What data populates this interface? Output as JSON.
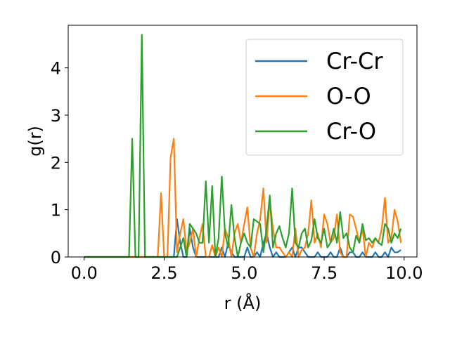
{
  "chart_data": {
    "type": "line",
    "title": "",
    "xlabel": "r (Å)",
    "ylabel": "g(r)",
    "xlim": [
      -0.5,
      10.4
    ],
    "ylim": [
      0,
      4.9
    ],
    "xticks": [
      "0.0",
      "2.5",
      "5.0",
      "7.5",
      "10.0"
    ],
    "xtick_values": [
      0,
      2.5,
      5,
      7.5,
      10
    ],
    "yticks": [
      "0",
      "1",
      "2",
      "3",
      "4"
    ],
    "ytick_values": [
      0,
      1,
      2,
      3,
      4
    ],
    "grid": false,
    "legend_position": "top-right",
    "series": [
      {
        "name": "Cr-Cr",
        "color": "#1f77b4",
        "x": [
          0.0,
          0.1,
          0.2,
          0.3,
          0.4,
          0.5,
          0.6,
          0.7,
          0.8,
          0.9,
          1.0,
          1.1,
          1.2,
          1.3,
          1.4,
          1.5,
          1.6,
          1.7,
          1.8,
          1.9,
          2.0,
          2.1,
          2.2,
          2.3,
          2.4,
          2.5,
          2.6,
          2.7,
          2.8,
          2.9,
          3.0,
          3.1,
          3.2,
          3.3,
          3.4,
          3.5,
          3.6,
          3.7,
          3.8,
          3.9,
          4.0,
          4.1,
          4.2,
          4.3,
          4.4,
          4.5,
          4.6,
          4.7,
          4.8,
          4.9,
          5.0,
          5.1,
          5.2,
          5.3,
          5.4,
          5.5,
          5.6,
          5.7,
          5.8,
          5.9,
          6.0,
          6.1,
          6.2,
          6.3,
          6.4,
          6.5,
          6.6,
          6.7,
          6.8,
          6.9,
          7.0,
          7.1,
          7.2,
          7.3,
          7.4,
          7.5,
          7.6,
          7.7,
          7.8,
          7.9,
          8.0,
          8.1,
          8.2,
          8.3,
          8.4,
          8.5,
          8.6,
          8.7,
          8.8,
          8.9,
          9.0,
          9.1,
          9.2,
          9.3,
          9.4,
          9.5,
          9.6,
          9.7,
          9.8,
          9.9
        ],
        "values": [
          0,
          0,
          0,
          0,
          0,
          0,
          0,
          0,
          0,
          0,
          0,
          0,
          0,
          0,
          0,
          0,
          0,
          0,
          0,
          0,
          0,
          0,
          0,
          0,
          0,
          0,
          0,
          0,
          0,
          0.8,
          0.3,
          0.0,
          0.0,
          0.6,
          0.2,
          0.0,
          0.0,
          0.0,
          0.0,
          0.0,
          0.0,
          0.0,
          0.0,
          0.2,
          0.0,
          0.3,
          0.1,
          0.0,
          0.0,
          0.0,
          0.0,
          0.2,
          0.0,
          0.0,
          0.1,
          0.0,
          0.3,
          0.5,
          0.2,
          0.0,
          0.1,
          0.0,
          0.0,
          0.0,
          0.1,
          0.2,
          0.0,
          0.2,
          0.2,
          0.1,
          0.0,
          0.0,
          0.0,
          0.1,
          0.0,
          0.0,
          0.0,
          0.1,
          0.0,
          0.0,
          0.2,
          0.0,
          0.0,
          0.1,
          0.1,
          0.0,
          0.0,
          0.1,
          0.0,
          0.0,
          0.0,
          0.1,
          0.0,
          0.0,
          0.1,
          0.0,
          0.2,
          0.1,
          0.1,
          0.15
        ]
      },
      {
        "name": "O-O",
        "color": "#ff7f0e",
        "x": [
          0.0,
          0.1,
          0.2,
          0.3,
          0.4,
          0.5,
          0.6,
          0.7,
          0.8,
          0.9,
          1.0,
          1.1,
          1.2,
          1.3,
          1.4,
          1.5,
          1.6,
          1.7,
          1.8,
          1.9,
          2.0,
          2.1,
          2.2,
          2.3,
          2.4,
          2.5,
          2.6,
          2.7,
          2.8,
          2.9,
          3.0,
          3.1,
          3.2,
          3.3,
          3.4,
          3.5,
          3.6,
          3.7,
          3.8,
          3.9,
          4.0,
          4.1,
          4.2,
          4.3,
          4.4,
          4.5,
          4.6,
          4.7,
          4.8,
          4.9,
          5.0,
          5.1,
          5.2,
          5.3,
          5.4,
          5.5,
          5.6,
          5.7,
          5.8,
          5.9,
          6.0,
          6.1,
          6.2,
          6.3,
          6.4,
          6.5,
          6.6,
          6.7,
          6.8,
          6.9,
          7.0,
          7.1,
          7.2,
          7.3,
          7.4,
          7.5,
          7.6,
          7.7,
          7.8,
          7.9,
          8.0,
          8.1,
          8.2,
          8.3,
          8.4,
          8.5,
          8.6,
          8.7,
          8.8,
          8.9,
          9.0,
          9.1,
          9.2,
          9.3,
          9.4,
          9.5,
          9.6,
          9.7,
          9.8,
          9.9
        ],
        "values": [
          0,
          0,
          0,
          0,
          0,
          0,
          0,
          0,
          0,
          0,
          0,
          0,
          0,
          0,
          0,
          0,
          0,
          0,
          0,
          0,
          0,
          0,
          0,
          0,
          1.35,
          0,
          0,
          2.1,
          2.5,
          0.1,
          0.5,
          0.8,
          0.1,
          0.3,
          0.6,
          0.0,
          0.4,
          0.7,
          0.0,
          0.0,
          0.25,
          0.0,
          0.2,
          0.0,
          0.6,
          0.4,
          0.0,
          0.5,
          0.7,
          0.3,
          0.7,
          1.05,
          0.2,
          0.0,
          0.5,
          0.8,
          1.45,
          0.3,
          1.2,
          0.6,
          0.2,
          0.2,
          0.1,
          0.0,
          0.1,
          0.0,
          0.6,
          0.0,
          0.15,
          0.2,
          0.5,
          1.2,
          0.3,
          0.5,
          0.2,
          0.9,
          0.7,
          0.3,
          0.4,
          0.9,
          0.1,
          0.0,
          0.0,
          0.9,
          0.85,
          0.6,
          0.3,
          0.6,
          0.0,
          0.3,
          0.2,
          0.4,
          0.3,
          0.6,
          1.25,
          0.3,
          0.4,
          1.0,
          0.75,
          0.3
        ]
      },
      {
        "name": "Cr-O",
        "color": "#2ca02c",
        "x": [
          0.0,
          0.1,
          0.2,
          0.3,
          0.4,
          0.5,
          0.6,
          0.7,
          0.8,
          0.9,
          1.0,
          1.1,
          1.2,
          1.3,
          1.4,
          1.5,
          1.6,
          1.7,
          1.8,
          1.9,
          2.0,
          2.1,
          2.2,
          2.3,
          2.4,
          2.5,
          2.6,
          2.7,
          2.8,
          2.9,
          3.0,
          3.1,
          3.2,
          3.3,
          3.4,
          3.5,
          3.6,
          3.7,
          3.8,
          3.9,
          4.0,
          4.1,
          4.2,
          4.3,
          4.4,
          4.5,
          4.6,
          4.7,
          4.8,
          4.9,
          5.0,
          5.1,
          5.2,
          5.3,
          5.4,
          5.5,
          5.6,
          5.7,
          5.8,
          5.9,
          6.0,
          6.1,
          6.2,
          6.3,
          6.4,
          6.5,
          6.6,
          6.7,
          6.8,
          6.9,
          7.0,
          7.1,
          7.2,
          7.3,
          7.4,
          7.5,
          7.6,
          7.7,
          7.8,
          7.9,
          8.0,
          8.1,
          8.2,
          8.3,
          8.4,
          8.5,
          8.6,
          8.7,
          8.8,
          8.9,
          9.0,
          9.1,
          9.2,
          9.3,
          9.4,
          9.5,
          9.6,
          9.7,
          9.8,
          9.9
        ],
        "values": [
          0,
          0,
          0,
          0,
          0,
          0,
          0,
          0,
          0,
          0,
          0,
          0,
          0,
          0,
          0,
          2.5,
          0.0,
          0.0,
          4.7,
          0.0,
          0.0,
          0.0,
          0.0,
          0.0,
          0.0,
          0.0,
          0.0,
          0.0,
          0.0,
          0.0,
          0.2,
          0.4,
          0.0,
          0.7,
          0.6,
          0.5,
          0.3,
          0.3,
          1.6,
          0.3,
          1.5,
          0.0,
          0.4,
          1.7,
          0.5,
          0.2,
          1.1,
          0.4,
          0.0,
          0.3,
          0.5,
          0.3,
          0.2,
          0.8,
          0.75,
          0.7,
          0.1,
          0.6,
          1.3,
          0.2,
          0.5,
          0.65,
          0.4,
          0.2,
          0.5,
          1.45,
          0.3,
          0.2,
          0.5,
          0.6,
          0.2,
          0.35,
          0.8,
          0.4,
          0.3,
          0.6,
          0.2,
          0.3,
          0.6,
          0.3,
          0.95,
          0.4,
          0.5,
          0.2,
          0.1,
          0.45,
          0.3,
          0.7,
          0.35,
          0.4,
          0.3,
          0.4,
          0.3,
          0.25,
          0.7,
          0.6,
          0.3,
          0.5,
          0.4,
          0.6
        ]
      }
    ]
  }
}
